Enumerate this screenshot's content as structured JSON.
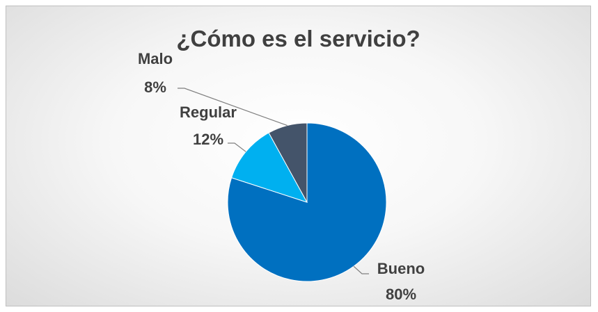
{
  "chart_data": {
    "type": "pie",
    "title": "¿Cómo es el servicio?",
    "categories": [
      "Bueno",
      "Regular",
      "Malo"
    ],
    "values": [
      80,
      12,
      8
    ],
    "labels": [
      "80%",
      "12%",
      "8%"
    ],
    "colors": [
      "#0070c0",
      "#00b0f0",
      "#44546a"
    ],
    "start_angle_deg": 0,
    "direction": "clockwise",
    "legend": "none",
    "data_labels": "outside-with-leader-lines"
  }
}
